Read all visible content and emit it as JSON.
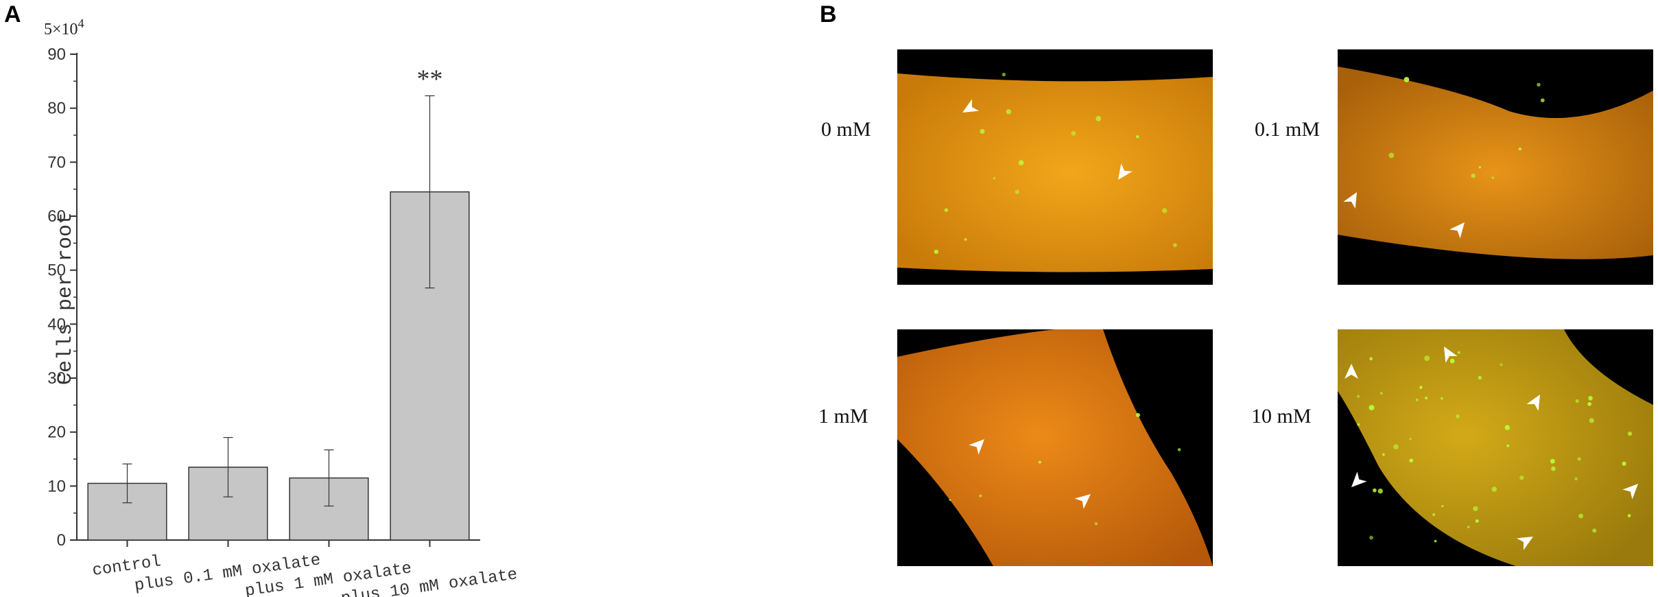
{
  "panel_labels": {
    "a": "A",
    "b": "B"
  },
  "chart_data": {
    "type": "bar",
    "title": "",
    "multiplier": "5×10",
    "multiplier_exp": "4",
    "xlabel": "",
    "ylabel": "Cells per root",
    "ylim": [
      0,
      90
    ],
    "yticks": [
      0,
      10,
      20,
      30,
      40,
      50,
      60,
      70,
      80,
      90
    ],
    "grid": false,
    "categories": [
      "control",
      "plus 0.1 mM oxalate",
      "plus 1 mM oxalate",
      "plus 10 mM oxalate"
    ],
    "values": [
      10.5,
      13.5,
      11.5,
      64.5
    ],
    "errors": [
      3.6,
      5.5,
      5.2,
      17.8
    ],
    "annotations": [
      {
        "category": "plus 10 mM oxalate",
        "text": "**"
      }
    ],
    "bar_color": "#c6c6c6"
  },
  "micrographs": [
    {
      "label": "0 mM",
      "tone": "#e39a0c",
      "green_spots": "few",
      "arrows": 2
    },
    {
      "label": "0.1 mM",
      "tone": "#d98a10",
      "green_spots": "few",
      "arrows": 2
    },
    {
      "label": "1 mM",
      "tone": "#e4780e",
      "green_spots": "few",
      "arrows": 2
    },
    {
      "label": "10 mM",
      "tone": "#cfa214",
      "green_spots": "many",
      "arrows": 7
    }
  ]
}
